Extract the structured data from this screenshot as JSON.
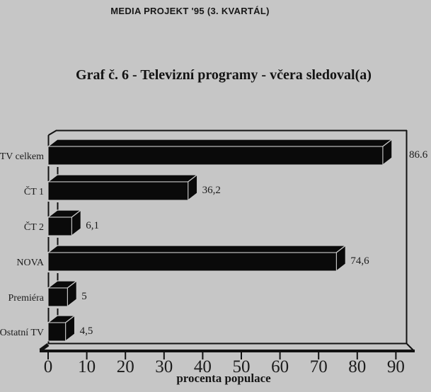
{
  "header": {
    "text": "MEDIA PROJEKT '95 (3. KVARTÁL)"
  },
  "title": {
    "text": "Graf č. 6 - Televizní programy - včera sledoval(a)"
  },
  "chart_data": {
    "type": "bar",
    "orientation": "horizontal",
    "style": "3d-black-bars",
    "categories": [
      "TV celkem",
      "ČT 1",
      "ČT 2",
      "NOVA",
      "Premiéra",
      "Ostatní TV"
    ],
    "values": [
      86.6,
      36.2,
      6.1,
      74.6,
      5,
      4.5
    ],
    "value_labels": [
      "86.6",
      "36,2",
      "6,1",
      "74,6",
      "5",
      "4,5"
    ],
    "xlabel": "procenta populace",
    "x_ticks": [
      0,
      10,
      20,
      30,
      40,
      50,
      60,
      70,
      80,
      90
    ],
    "xlim": [
      0,
      90
    ],
    "grid": "off",
    "legend": "none",
    "bar_color": "#0a0a0a",
    "background_color": "#c6c6c6",
    "line_color": "#121212",
    "face_separator_color": "#c9c9c9",
    "text_color": "#1c1c1c"
  }
}
